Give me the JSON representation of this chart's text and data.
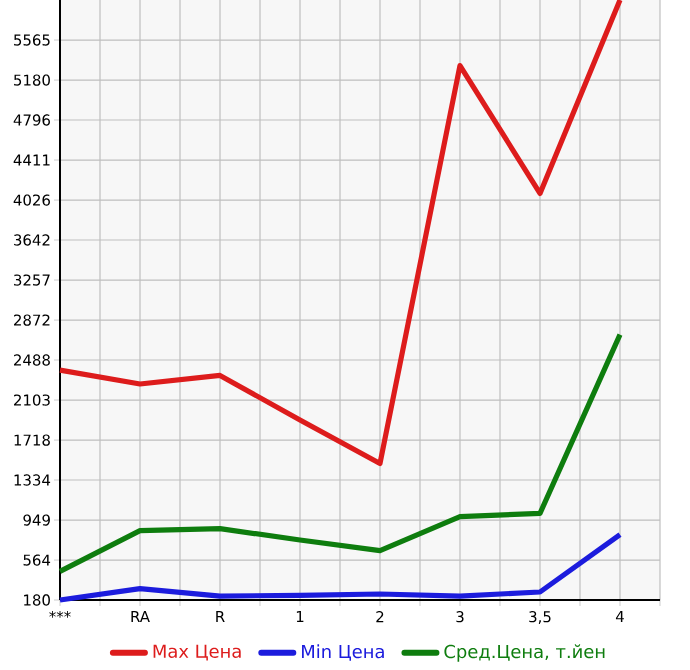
{
  "chart_data": {
    "type": "line",
    "categories": [
      "***",
      "RA",
      "R",
      "1",
      "2",
      "3",
      "3,5",
      "4"
    ],
    "series": [
      {
        "name": "Max Цена",
        "color": "#dd1c1c",
        "values": [
          2391,
          2257,
          2340,
          1910,
          1493,
          5320,
          4090,
          5950
        ]
      },
      {
        "name": "Min Цена",
        "color": "#1c1cdd",
        "values": [
          180,
          290,
          218,
          225,
          238,
          218,
          257,
          809
        ]
      },
      {
        "name": "Сред.Цена, т.йен",
        "color": "#0e7d0e",
        "values": [
          455,
          847,
          866,
          757,
          655,
          982,
          1013,
          2732
        ]
      }
    ],
    "ylim": [
      180,
      5950
    ],
    "yticks": [
      180,
      564,
      949,
      1334,
      1718,
      2103,
      2488,
      2872,
      3257,
      3642,
      4026,
      4411,
      4796,
      5180,
      5565
    ],
    "grid": true,
    "legend": "bottom",
    "marker": "none",
    "line_style": "solid"
  }
}
